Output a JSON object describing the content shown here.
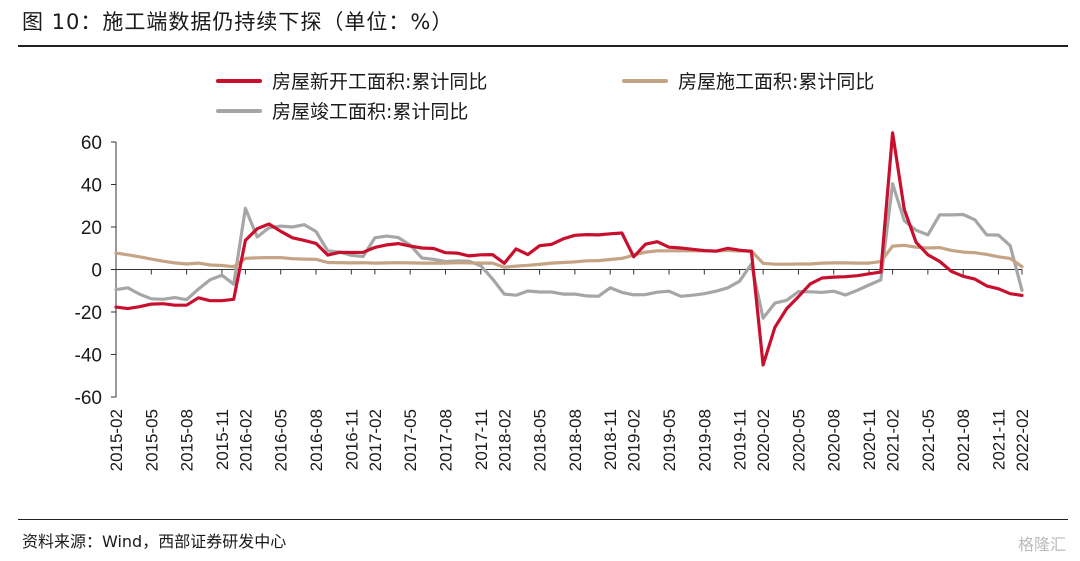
{
  "title": "图 10：施工端数据仍持续下探（单位：%）",
  "source": "资料来源：Wind，西部证券研发中心",
  "watermark": "格隆汇",
  "colors": {
    "new_starts": "#C8102E",
    "under_construction": "#C4A484",
    "completed": "#A6A6A6",
    "axis": "#333333"
  },
  "chart_data": {
    "type": "line",
    "title": "",
    "xlabel": "",
    "ylabel": "",
    "ylim": [
      -60,
      60
    ],
    "yticks": [
      60,
      40,
      20,
      0,
      -20,
      -40,
      -60
    ],
    "grid": false,
    "legend": "top",
    "x": [
      "2015-02",
      "2015-03",
      "2015-04",
      "2015-05",
      "2015-06",
      "2015-07",
      "2015-08",
      "2015-09",
      "2015-10",
      "2015-11",
      "2015-12",
      "2016-02",
      "2016-03",
      "2016-04",
      "2016-05",
      "2016-06",
      "2016-07",
      "2016-08",
      "2016-09",
      "2016-10",
      "2016-11",
      "2016-12",
      "2017-02",
      "2017-03",
      "2017-04",
      "2017-05",
      "2017-06",
      "2017-07",
      "2017-08",
      "2017-09",
      "2017-10",
      "2017-11",
      "2017-12",
      "2018-02",
      "2018-03",
      "2018-04",
      "2018-05",
      "2018-06",
      "2018-07",
      "2018-08",
      "2018-09",
      "2018-10",
      "2018-11",
      "2018-12",
      "2019-02",
      "2019-03",
      "2019-04",
      "2019-05",
      "2019-06",
      "2019-07",
      "2019-08",
      "2019-09",
      "2019-10",
      "2019-11",
      "2019-12",
      "2020-02",
      "2020-03",
      "2020-04",
      "2020-05",
      "2020-06",
      "2020-07",
      "2020-08",
      "2020-09",
      "2020-10",
      "2020-11",
      "2020-12",
      "2021-02",
      "2021-03",
      "2021-04",
      "2021-05",
      "2021-06",
      "2021-07",
      "2021-08",
      "2021-09",
      "2021-10",
      "2021-11",
      "2021-12",
      "2022-02"
    ],
    "xticks": [
      "2015-02",
      "2015-05",
      "2015-08",
      "2015-11",
      "2016-02",
      "2016-05",
      "2016-08",
      "2016-11",
      "2017-02",
      "2017-05",
      "2017-08",
      "2017-11",
      "2018-02",
      "2018-05",
      "2018-08",
      "2018-11",
      "2019-02",
      "2019-05",
      "2019-08",
      "2019-11",
      "2020-02",
      "2020-05",
      "2020-08",
      "2020-11",
      "2021-02",
      "2021-05",
      "2021-08",
      "2021-11",
      "2022-02"
    ],
    "series": [
      {
        "name": "房屋新开工面积:累计同比",
        "color": "#C8102E",
        "values": [
          -17.7,
          -18.4,
          -17.5,
          -16.3,
          -16.1,
          -16.8,
          -16.8,
          -13.3,
          -14.7,
          -14.7,
          -14.0,
          13.7,
          19.2,
          21.4,
          18.0,
          14.9,
          13.7,
          12.3,
          6.8,
          8.1,
          8.0,
          8.1,
          10.4,
          11.6,
          12.2,
          11.0,
          10.1,
          9.9,
          7.9,
          7.7,
          6.4,
          6.9,
          7.0,
          2.9,
          9.7,
          7.0,
          11.2,
          11.8,
          14.4,
          16.1,
          16.4,
          16.3,
          16.8,
          17.2,
          6.0,
          11.9,
          13.1,
          10.5,
          10.1,
          9.5,
          8.9,
          8.6,
          10.0,
          9.1,
          8.5,
          -44.9,
          -27.2,
          -18.4,
          -12.8,
          -6.8,
          -4.0,
          -3.6,
          -3.4,
          -2.9,
          -2.0,
          -1.2,
          64.3,
          28.2,
          12.8,
          6.9,
          3.8,
          -0.9,
          -3.2,
          -4.5,
          -7.7,
          -9.1,
          -11.4,
          -12.2
        ]
      },
      {
        "name": "房屋施工面积:累计同比",
        "color": "#C4A484",
        "values": [
          7.7,
          6.9,
          6.0,
          4.9,
          3.9,
          3.1,
          2.6,
          3.0,
          2.1,
          1.9,
          1.3,
          5.2,
          5.5,
          5.6,
          5.6,
          5.1,
          4.9,
          4.8,
          3.3,
          3.2,
          3.1,
          3.2,
          3.0,
          3.1,
          3.2,
          3.1,
          3.0,
          3.0,
          3.0,
          3.2,
          3.1,
          3.0,
          3.0,
          1.1,
          1.6,
          2.0,
          2.4,
          3.0,
          3.3,
          3.6,
          4.1,
          4.2,
          4.7,
          5.2,
          6.8,
          8.2,
          8.8,
          8.8,
          8.8,
          8.8,
          8.8,
          8.7,
          9.0,
          8.7,
          8.7,
          2.9,
          2.5,
          2.5,
          2.6,
          2.6,
          3.0,
          3.1,
          3.1,
          3.0,
          3.0,
          3.7,
          11.0,
          11.4,
          10.5,
          10.1,
          10.3,
          9.0,
          8.2,
          7.9,
          7.1,
          6.0,
          5.2,
          1.3
        ]
      },
      {
        "name": "房屋竣工面积:累计同比",
        "color": "#A6A6A6",
        "values": [
          -9.5,
          -8.6,
          -11.6,
          -13.8,
          -14.0,
          -13.2,
          -14.2,
          -9.2,
          -4.8,
          -2.7,
          -6.9,
          28.8,
          15.3,
          19.6,
          20.4,
          20.0,
          21.1,
          17.9,
          8.7,
          8.2,
          6.7,
          6.1,
          14.9,
          15.7,
          15.0,
          11.5,
          5.4,
          4.8,
          3.7,
          4.0,
          3.9,
          1.8,
          -4.4,
          -11.6,
          -12.1,
          -10.1,
          -10.6,
          -10.6,
          -11.6,
          -11.6,
          -12.4,
          -12.6,
          -8.6,
          -10.8,
          -11.9,
          -11.8,
          -10.7,
          -10.2,
          -12.6,
          -12.1,
          -11.4,
          -10.2,
          -8.6,
          -5.5,
          2.6,
          -22.9,
          -15.8,
          -14.5,
          -10.4,
          -10.5,
          -10.8,
          -10.2,
          -12.0,
          -9.8,
          -7.3,
          -4.9,
          40.4,
          22.9,
          18.5,
          16.3,
          25.7,
          25.7,
          25.9,
          23.4,
          16.3,
          16.2,
          11.2,
          -9.8
        ]
      }
    ]
  }
}
